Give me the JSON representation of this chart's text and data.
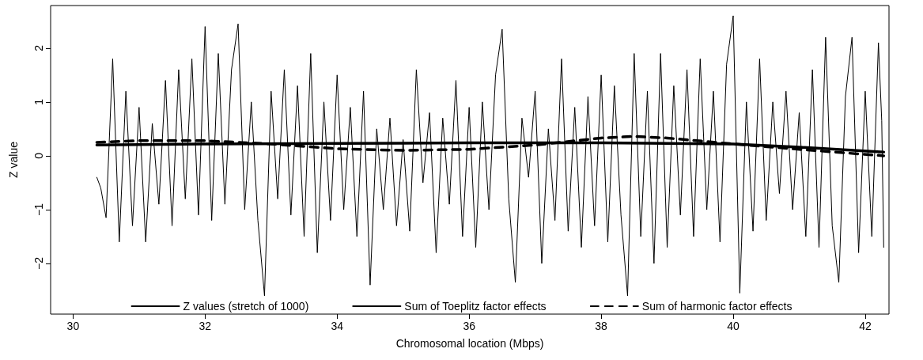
{
  "chart_data": {
    "type": "line",
    "xlabel": "Chromosomal location (Mbps)",
    "ylabel": "Z value",
    "xlim": [
      29.66,
      42.36
    ],
    "ylim": [
      -2.94,
      2.79
    ],
    "xticks": [
      30,
      32,
      34,
      36,
      38,
      40,
      42
    ],
    "yticks": [
      -2,
      -1,
      0,
      1,
      2
    ],
    "legend": "bottom",
    "grid": false,
    "marker": "none",
    "series": [
      {
        "name": "Z values (stretch of 1000)",
        "color": "#000000",
        "line_style": "solid",
        "x": [
          30.36,
          30.42,
          30.5,
          30.6,
          30.7,
          30.8,
          30.9,
          31.0,
          31.1,
          31.2,
          31.3,
          31.4,
          31.5,
          31.6,
          31.7,
          31.8,
          31.9,
          32.0,
          32.1,
          32.2,
          32.3,
          32.4,
          32.5,
          32.6,
          32.7,
          32.8,
          32.9,
          33.0,
          33.1,
          33.2,
          33.3,
          33.4,
          33.5,
          33.6,
          33.7,
          33.8,
          33.9,
          34.0,
          34.1,
          34.2,
          34.3,
          34.4,
          34.5,
          34.6,
          34.7,
          34.8,
          34.9,
          35.0,
          35.1,
          35.2,
          35.3,
          35.4,
          35.5,
          35.6,
          35.7,
          35.8,
          35.9,
          36.0,
          36.1,
          36.2,
          36.3,
          36.4,
          36.5,
          36.6,
          36.7,
          36.8,
          36.9,
          37.0,
          37.1,
          37.2,
          37.3,
          37.4,
          37.5,
          37.6,
          37.7,
          37.8,
          37.9,
          38.0,
          38.1,
          38.2,
          38.3,
          38.4,
          38.5,
          38.6,
          38.7,
          38.8,
          38.9,
          39.0,
          39.1,
          39.2,
          39.3,
          39.4,
          39.5,
          39.6,
          39.7,
          39.8,
          39.9,
          40.0,
          40.1,
          40.2,
          40.3,
          40.4,
          40.5,
          40.6,
          40.7,
          40.8,
          40.9,
          41.0,
          41.1,
          41.2,
          41.3,
          41.4,
          41.5,
          41.6,
          41.7,
          41.8,
          41.9,
          42.0,
          42.1,
          42.2,
          42.25,
          42.28
        ],
        "values": [
          -0.4,
          -0.6,
          -1.15,
          1.8,
          -1.6,
          1.2,
          -1.3,
          0.9,
          -1.6,
          0.6,
          -0.9,
          1.4,
          -1.3,
          1.6,
          -0.8,
          1.8,
          -1.1,
          2.4,
          -1.2,
          1.9,
          -0.9,
          1.6,
          2.45,
          -1.0,
          1.0,
          -1.2,
          -2.6,
          1.2,
          -0.8,
          1.6,
          -1.1,
          1.3,
          -1.5,
          1.9,
          -1.8,
          1.0,
          -1.2,
          1.5,
          -1.0,
          0.9,
          -1.5,
          1.2,
          -2.4,
          0.5,
          -1.0,
          0.7,
          -1.3,
          0.3,
          -1.4,
          1.6,
          -0.5,
          0.8,
          -1.8,
          0.7,
          -0.9,
          1.4,
          -1.5,
          0.9,
          -1.7,
          1.0,
          -1.0,
          1.5,
          2.35,
          -0.8,
          -2.35,
          0.7,
          -0.4,
          1.2,
          -2.0,
          0.5,
          -1.2,
          1.8,
          -1.4,
          0.9,
          -1.7,
          1.1,
          -1.3,
          1.5,
          -1.6,
          1.3,
          -1.1,
          -2.6,
          1.9,
          -1.5,
          1.2,
          -2.0,
          1.9,
          -1.7,
          1.3,
          -1.1,
          1.6,
          -1.5,
          1.8,
          -1.0,
          1.2,
          -1.6,
          1.7,
          2.6,
          -2.55,
          1.0,
          -1.4,
          1.8,
          -1.2,
          1.0,
          -0.7,
          1.2,
          -1.0,
          0.8,
          -1.5,
          1.6,
          -1.7,
          2.2,
          -1.3,
          -2.35,
          1.1,
          2.2,
          -1.8,
          1.2,
          -1.5,
          2.1,
          0.65,
          -1.7
        ]
      },
      {
        "name": "Sum of Toeplitz factor effects",
        "color": "#000000",
        "line_style": "solid",
        "x": [
          30.36,
          32,
          34,
          36,
          38,
          40,
          41,
          42.28
        ],
        "values": [
          0.2,
          0.22,
          0.23,
          0.24,
          0.24,
          0.22,
          0.16,
          0.07
        ]
      },
      {
        "name": "Sum of harmonic factor effects",
        "color": "#000000",
        "line_style": "dashed",
        "x": [
          30.36,
          31,
          32,
          33,
          34,
          35,
          36,
          37,
          38,
          38.5,
          39,
          40,
          41,
          42.28
        ],
        "values": [
          0.25,
          0.28,
          0.28,
          0.22,
          0.13,
          0.1,
          0.12,
          0.2,
          0.33,
          0.36,
          0.33,
          0.22,
          0.12,
          0.0
        ]
      }
    ]
  }
}
